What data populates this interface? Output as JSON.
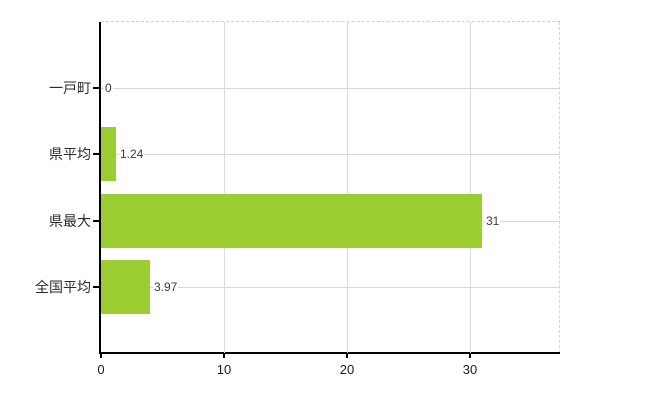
{
  "chart_data": {
    "type": "bar",
    "orientation": "horizontal",
    "categories": [
      "一戸町",
      "県平均",
      "県最大",
      "全国平均"
    ],
    "values": [
      0,
      1.24,
      31,
      3.97
    ],
    "value_labels": [
      "0",
      "1.24",
      "31",
      "3.97"
    ],
    "x_ticks": [
      "0",
      "10",
      "20",
      "30"
    ],
    "x_tick_values": [
      0,
      10,
      20,
      30
    ],
    "xlim": [
      0,
      37.3
    ],
    "grid": true,
    "legend": false,
    "title": "",
    "xlabel": "",
    "ylabel": "",
    "bar_color": "#9acd32",
    "axis_color": "#000000",
    "vgrid_color": "#dcdadc",
    "hgrid_color": "#d4dbd0",
    "border_color": "#d2ced2",
    "label_text_color": "#2b2b2b",
    "value_text_color": "#3c3c3c",
    "tick_text_color": "#1a1a1a"
  }
}
